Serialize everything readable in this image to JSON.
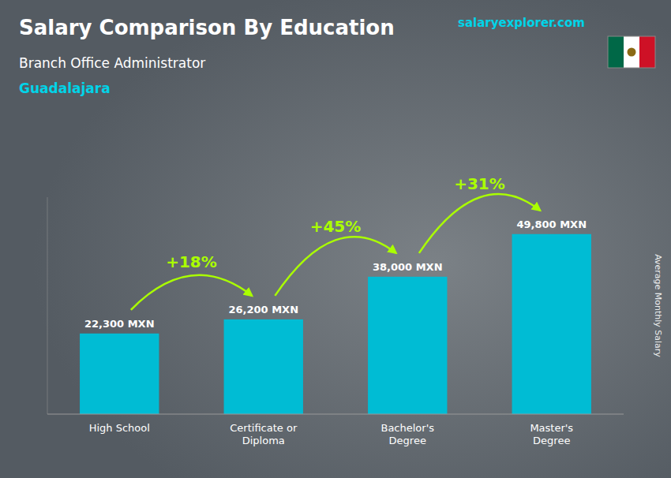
{
  "chart_data": {
    "type": "bar",
    "title": "Salary Comparison By Education",
    "subtitle": "Branch Office Administrator",
    "annotations": [
      "Guadalajara",
      "salaryexplorer.com",
      "+18%",
      "+45%",
      "+31%"
    ],
    "ylabel": "Average Monthly Salary",
    "categories": [
      "High School",
      "Certificate or\nDiploma",
      "Bachelor's\nDegree",
      "Master's\nDegree"
    ],
    "values": [
      22300,
      26200,
      38000,
      49800
    ],
    "value_labels": [
      "22,300 MXN",
      "26,200 MXN",
      "38,000 MXN",
      "49,800 MXN"
    ],
    "data_labels": true,
    "color": "#00bcd4",
    "ylim": [
      0,
      60000
    ],
    "tick_labels": "x",
    "grid": false
  }
}
